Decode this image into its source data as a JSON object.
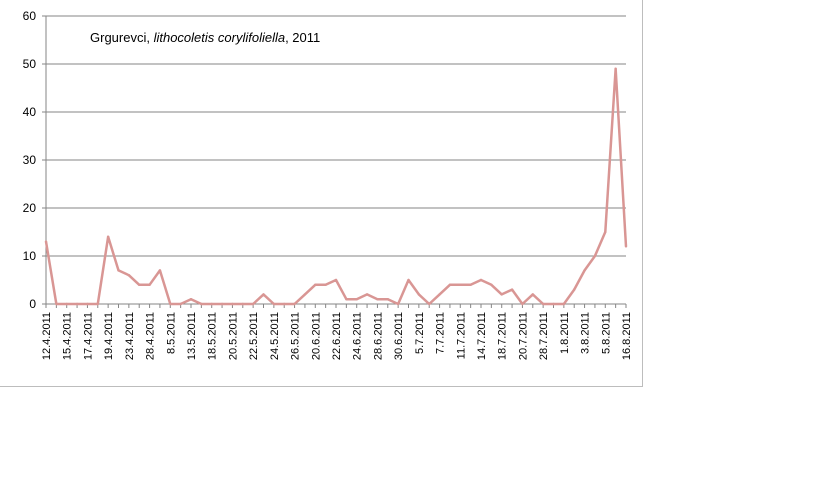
{
  "chart_data": {
    "type": "line",
    "title_parts": [
      {
        "text": "Grgurevci, ",
        "italic": false
      },
      {
        "text": "lithocoletis corylifoliella",
        "italic": true
      },
      {
        "text": ", 2011",
        "italic": false
      }
    ],
    "xlabel": "",
    "ylabel": "",
    "ylim": [
      0,
      60
    ],
    "yticks": [
      0,
      10,
      20,
      30,
      40,
      50,
      60
    ],
    "grid": true,
    "legend": "none",
    "series_color": "#d99694",
    "x_tick_labels": [
      "12.4.2011",
      "15.4.2011",
      "17.4.2011",
      "19.4.2011",
      "23.4.2011",
      "28.4.2011",
      "8.5.2011",
      "13.5.2011",
      "18.5.2011",
      "20.5.2011",
      "22.5.2011",
      "24.5.2011",
      "26.5.2011",
      "20.6.2011",
      "22.6.2011",
      "24.6.2011",
      "28.6.2011",
      "30.6.2011",
      "5.7.2011",
      "7.7.2011",
      "11.7.2011",
      "14.7.2011",
      "18.7.2011",
      "20.7.2011",
      "28.7.2011",
      "1.8.2011",
      "3.8.2011",
      "5.8.2011",
      "16.8.2011"
    ],
    "series": [
      {
        "values": [
          13,
          0,
          0,
          0,
          0,
          0,
          14,
          7,
          6,
          4,
          4,
          7,
          0,
          0,
          1,
          0,
          0,
          0,
          0,
          0,
          0,
          2,
          0,
          0,
          0,
          2,
          4,
          4,
          5,
          1,
          1,
          2,
          1,
          1,
          0,
          5,
          2,
          0,
          2,
          4,
          4,
          4,
          5,
          4,
          2,
          3,
          0,
          2,
          0,
          0,
          0,
          3,
          7,
          10,
          15,
          49,
          12
        ]
      }
    ]
  }
}
